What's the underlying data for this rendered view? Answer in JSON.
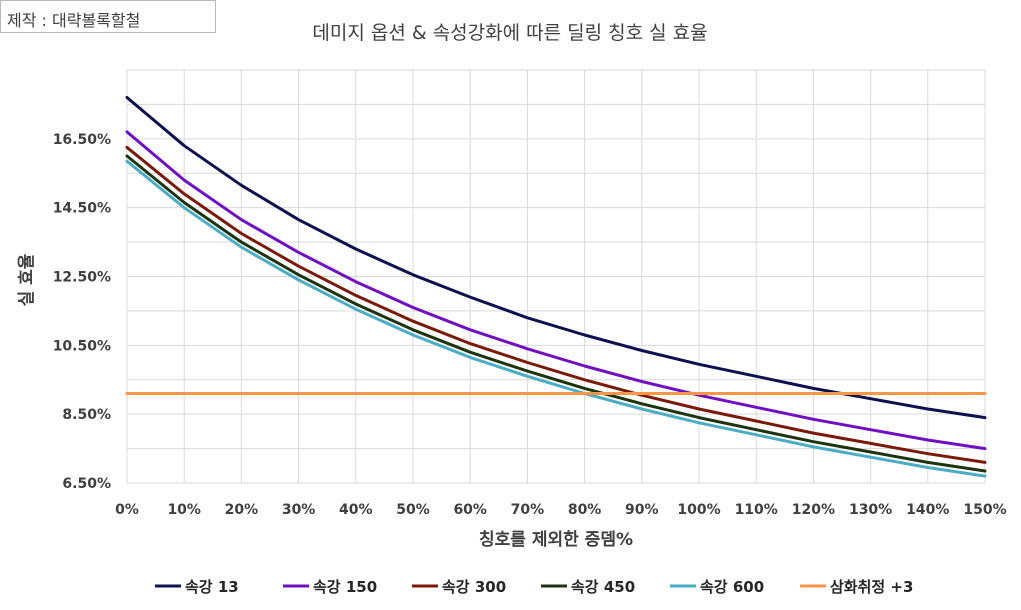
{
  "credit": "제작 : 대략볼록할철",
  "chart_data": {
    "type": "line",
    "title": "데미지 옵션 & 속성강화에 따른 딜링 칭호 실 효율",
    "xlabel": "칭호를 제외한 증뎀%",
    "ylabel": "실 효율",
    "x": [
      0,
      10,
      20,
      30,
      40,
      50,
      60,
      70,
      80,
      90,
      100,
      110,
      120,
      130,
      140,
      150
    ],
    "x_tick_labels": [
      "0%",
      "10%",
      "20%",
      "30%",
      "40%",
      "50%",
      "60%",
      "70%",
      "80%",
      "90%",
      "100%",
      "110%",
      "120%",
      "130%",
      "140%",
      "150%"
    ],
    "ylim": [
      6.5,
      18.5
    ],
    "y_ticks": [
      6.5,
      8.5,
      10.5,
      12.5,
      14.5,
      16.5
    ],
    "y_tick_labels": [
      "6.50%",
      "8.50%",
      "10.50%",
      "12.50%",
      "14.50%",
      "16.50%"
    ],
    "grid": true,
    "legend_position": "bottom",
    "series": [
      {
        "name": "속강 13",
        "color": "#0e1150",
        "values": [
          17.7,
          16.3,
          15.15,
          14.15,
          13.3,
          12.55,
          11.9,
          11.3,
          10.8,
          10.35,
          9.95,
          9.6,
          9.25,
          8.95,
          8.65,
          8.4
        ]
      },
      {
        "name": "속강 150",
        "color": "#7010c0",
        "values": [
          16.7,
          15.3,
          14.15,
          13.2,
          12.35,
          11.6,
          10.95,
          10.4,
          9.9,
          9.45,
          9.05,
          8.7,
          8.35,
          8.05,
          7.75,
          7.5
        ]
      },
      {
        "name": "속강 300",
        "color": "#7a1a0a",
        "values": [
          16.25,
          14.9,
          13.75,
          12.8,
          11.95,
          11.2,
          10.55,
          10.0,
          9.5,
          9.05,
          8.65,
          8.3,
          7.95,
          7.65,
          7.35,
          7.1
        ]
      },
      {
        "name": "속강 450",
        "color": "#1e3410",
        "values": [
          16.0,
          14.65,
          13.5,
          12.55,
          11.7,
          10.95,
          10.3,
          9.75,
          9.25,
          8.8,
          8.4,
          8.05,
          7.7,
          7.4,
          7.1,
          6.85
        ]
      },
      {
        "name": "속강 600",
        "color": "#4bacc6",
        "values": [
          15.85,
          14.5,
          13.35,
          12.4,
          11.55,
          10.8,
          10.15,
          9.6,
          9.1,
          8.65,
          8.25,
          7.9,
          7.55,
          7.25,
          6.95,
          6.7
        ]
      },
      {
        "name": "삼화취정 +3",
        "color": "#f79646",
        "values": [
          9.1,
          9.1,
          9.1,
          9.1,
          9.1,
          9.1,
          9.1,
          9.1,
          9.1,
          9.1,
          9.1,
          9.1,
          9.1,
          9.1,
          9.1,
          9.1
        ]
      }
    ]
  }
}
